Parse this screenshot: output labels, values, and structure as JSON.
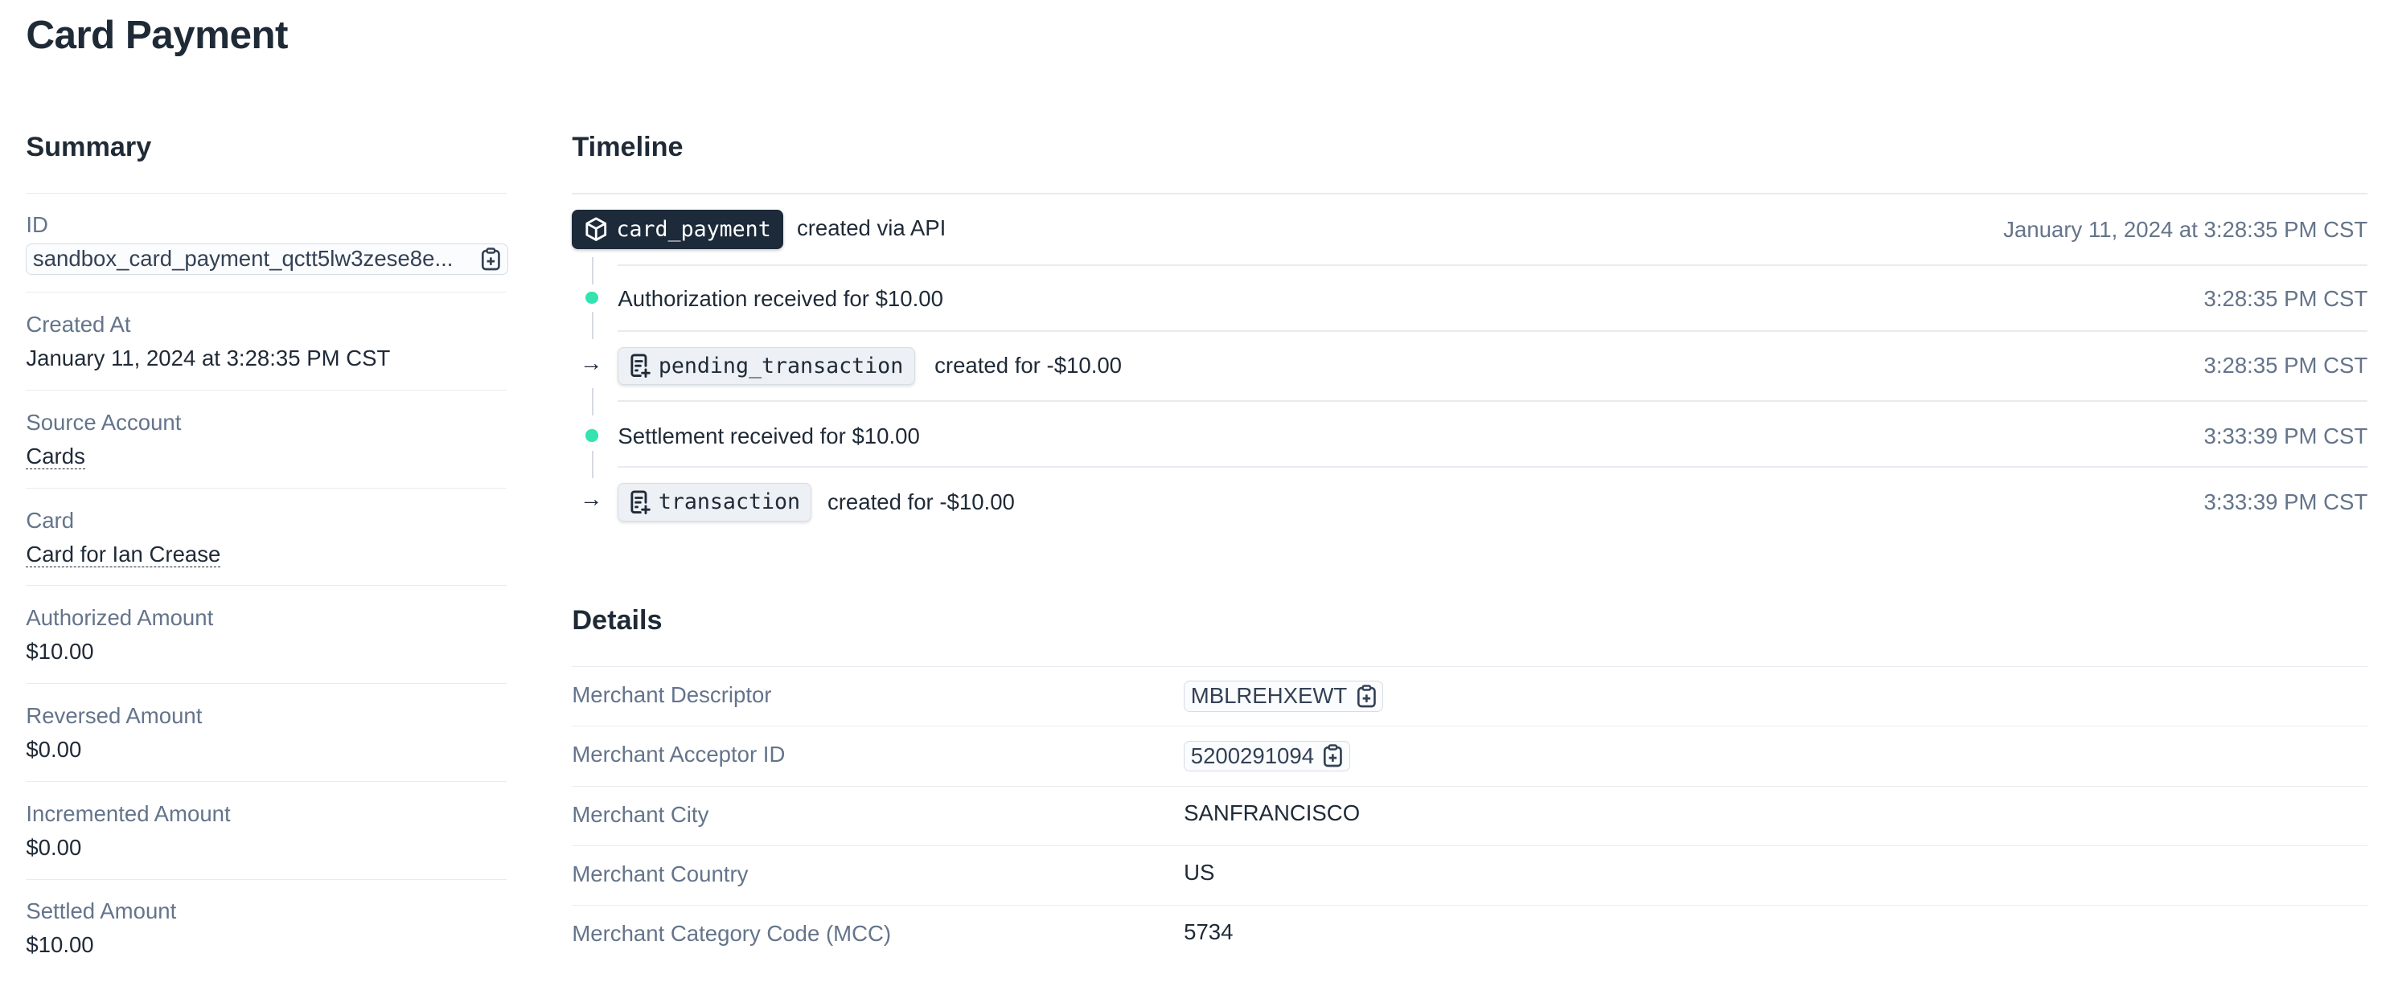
{
  "page": {
    "title": "Card Payment"
  },
  "colors": {
    "text": "#1f2a37",
    "muted": "#64748b",
    "accent_dot": "#34e3b0",
    "badge_dark": "#1c2a3a"
  },
  "summary": {
    "heading": "Summary",
    "items": [
      {
        "label": "ID",
        "value": "sandbox_card_payment_qctt5lw3zese8e...",
        "icon": "clipboard-plus-icon"
      },
      {
        "label": "Created At",
        "value": "January 11, 2024 at 3:28:35 PM CST"
      },
      {
        "label": "Source Account",
        "value": "Cards"
      },
      {
        "label": "Card",
        "value": "Card for Ian Crease"
      },
      {
        "label": "Authorized Amount",
        "value": "$10.00"
      },
      {
        "label": "Reversed Amount",
        "value": "$0.00"
      },
      {
        "label": "Incremented Amount",
        "value": "$0.00"
      },
      {
        "label": "Settled Amount",
        "value": "$10.00"
      }
    ]
  },
  "timeline": {
    "heading": "Timeline",
    "created": {
      "badge": "card_payment",
      "icon": "cube-icon",
      "text": "created via API",
      "time": "January 11, 2024 at 3:28:35 PM CST"
    },
    "events": [
      {
        "kind": "dot",
        "text": "Authorization received for $10.00",
        "time": "3:28:35 PM CST"
      },
      {
        "kind": "arrow",
        "badge": "pending_transaction",
        "icon": "receipt-plus-icon",
        "text": "created for -$10.00",
        "time": "3:28:35 PM CST"
      },
      {
        "kind": "dot",
        "text": "Settlement received for $10.00",
        "time": "3:33:39 PM CST"
      },
      {
        "kind": "arrow",
        "badge": "transaction",
        "icon": "receipt-plus-icon",
        "text": "created for -$10.00",
        "time": "3:33:39 PM CST"
      }
    ]
  },
  "details": {
    "heading": "Details",
    "rows": [
      {
        "label": "Merchant Descriptor",
        "value": "MBLREHXEWT"
      },
      {
        "label": "Merchant Acceptor ID",
        "value": "5200291094"
      },
      {
        "label": "Merchant City",
        "value": "SANFRANCISCO"
      },
      {
        "label": "Merchant Country",
        "value": "US"
      },
      {
        "label": "Merchant Category Code (MCC)",
        "value": "5734"
      }
    ]
  }
}
